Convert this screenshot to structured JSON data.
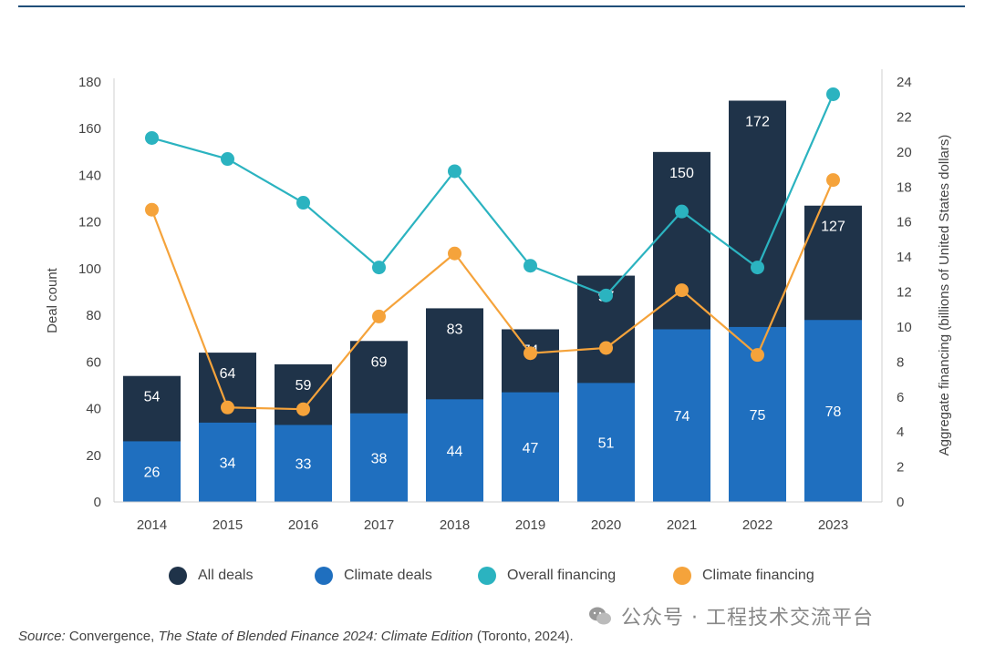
{
  "chart_data": {
    "type": "bar",
    "categories": [
      "2014",
      "2015",
      "2016",
      "2017",
      "2018",
      "2019",
      "2020",
      "2021",
      "2022",
      "2023"
    ],
    "series": [
      {
        "name": "All deals",
        "type": "bar",
        "axis": "left",
        "color": "#1f3349",
        "values": [
          54,
          64,
          59,
          69,
          83,
          74,
          97,
          150,
          172,
          127
        ]
      },
      {
        "name": "Climate deals",
        "type": "bar",
        "axis": "left",
        "color": "#1f6fbf",
        "values": [
          26,
          34,
          33,
          38,
          44,
          47,
          51,
          74,
          75,
          78
        ]
      },
      {
        "name": "Overall financing",
        "type": "line",
        "axis": "right",
        "color": "#2bb3c0",
        "values": [
          20.8,
          19.6,
          17.1,
          13.4,
          18.9,
          13.5,
          11.8,
          16.6,
          13.4,
          23.3
        ]
      },
      {
        "name": "Climate financing",
        "type": "line",
        "axis": "right",
        "color": "#f5a33b",
        "values": [
          16.7,
          5.4,
          5.3,
          10.6,
          14.2,
          8.5,
          8.8,
          12.1,
          8.4,
          18.4
        ]
      }
    ],
    "ylabel": "Deal count",
    "ylabel_right": "Aggregate financing (billions of United States dollars)",
    "ylim": [
      0,
      180
    ],
    "ylim_right": [
      0,
      24
    ],
    "yticks": [
      0,
      20,
      40,
      60,
      80,
      100,
      120,
      140,
      160,
      180
    ],
    "yticks_right": [
      0,
      2,
      4,
      6,
      8,
      10,
      12,
      14,
      16,
      18,
      20,
      22,
      24
    ],
    "legend_position": "bottom",
    "grid": false
  },
  "legend": [
    {
      "label": "All deals",
      "color": "#1f3349"
    },
    {
      "label": "Climate deals",
      "color": "#1f6fbf"
    },
    {
      "label": "Overall financing",
      "color": "#2bb3c0"
    },
    {
      "label": "Climate financing",
      "color": "#f5a33b"
    }
  ],
  "source": {
    "prefix": "Source:",
    "text1": " Convergence, ",
    "title": "The State of Blended Finance 2024: Climate Edition",
    "text2": " (Toronto, 2024)."
  },
  "watermark": {
    "text": "公众号 · 工程技术交流平台"
  }
}
